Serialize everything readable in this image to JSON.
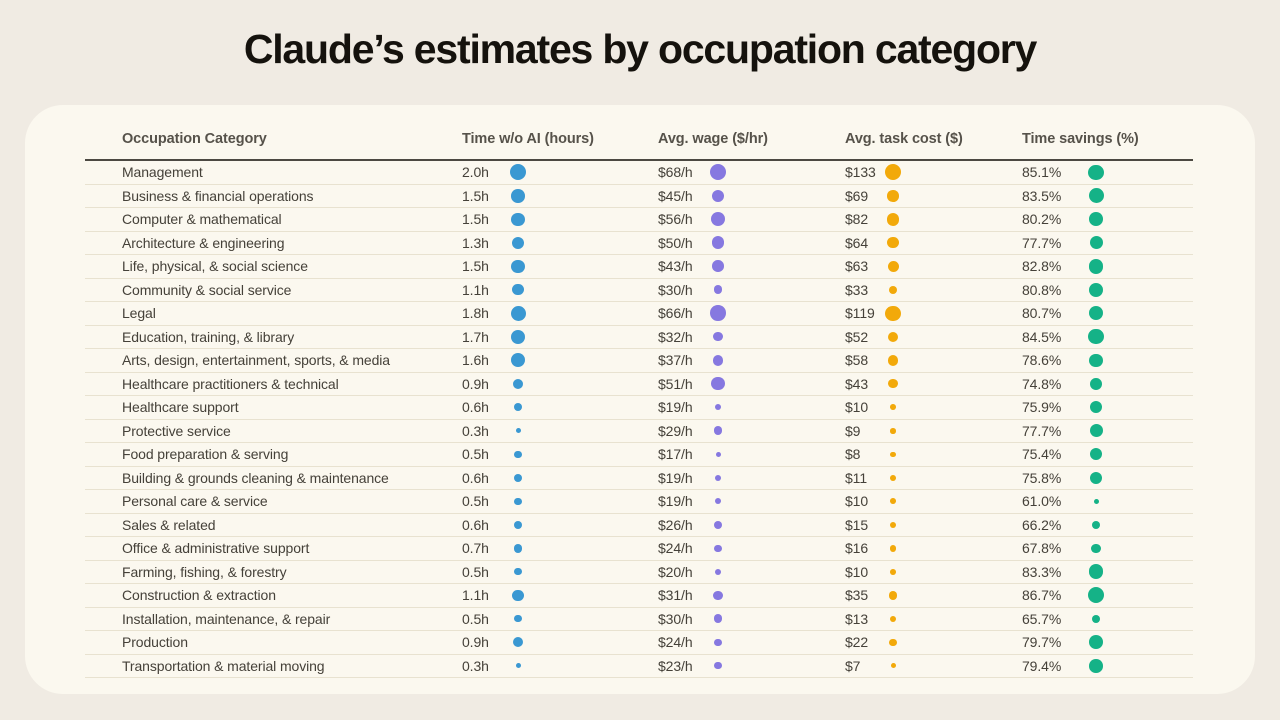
{
  "chart_data": {
    "type": "table",
    "title": "Claude’s estimates by occupation category",
    "legend_note": "dot size scales with value within each column",
    "columns": [
      {
        "key": "category",
        "label": "Occupation Category"
      },
      {
        "key": "time",
        "label": "Time w/o AI (hours)",
        "dot_color": "#3A98D2"
      },
      {
        "key": "wage",
        "label": "Avg. wage ($/hr)",
        "dot_color": "#8678E0"
      },
      {
        "key": "cost",
        "label": "Avg. task cost ($)",
        "dot_color": "#F2A90A"
      },
      {
        "key": "savings",
        "label": "Time savings (%)",
        "dot_color": "#15B287"
      }
    ],
    "rows": [
      {
        "category": "Management",
        "time": "2.0h",
        "time_value": 2.0,
        "wage": "$68/h",
        "wage_value": 68,
        "cost": "$133",
        "cost_value": 133,
        "savings": "85.1%",
        "savings_value": 85.1
      },
      {
        "category": "Business & financial operations",
        "time": "1.5h",
        "time_value": 1.5,
        "wage": "$45/h",
        "wage_value": 45,
        "cost": "$69",
        "cost_value": 69,
        "savings": "83.5%",
        "savings_value": 83.5
      },
      {
        "category": "Computer & mathematical",
        "time": "1.5h",
        "time_value": 1.5,
        "wage": "$56/h",
        "wage_value": 56,
        "cost": "$82",
        "cost_value": 82,
        "savings": "80.2%",
        "savings_value": 80.2
      },
      {
        "category": "Architecture & engineering",
        "time": "1.3h",
        "time_value": 1.3,
        "wage": "$50/h",
        "wage_value": 50,
        "cost": "$64",
        "cost_value": 64,
        "savings": "77.7%",
        "savings_value": 77.7
      },
      {
        "category": "Life, physical, & social science",
        "time": "1.5h",
        "time_value": 1.5,
        "wage": "$43/h",
        "wage_value": 43,
        "cost": "$63",
        "cost_value": 63,
        "savings": "82.8%",
        "savings_value": 82.8
      },
      {
        "category": "Community & social service",
        "time": "1.1h",
        "time_value": 1.1,
        "wage": "$30/h",
        "wage_value": 30,
        "cost": "$33",
        "cost_value": 33,
        "savings": "80.8%",
        "savings_value": 80.8
      },
      {
        "category": "Legal",
        "time": "1.8h",
        "time_value": 1.8,
        "wage": "$66/h",
        "wage_value": 66,
        "cost": "$119",
        "cost_value": 119,
        "savings": "80.7%",
        "savings_value": 80.7
      },
      {
        "category": "Education, training, & library",
        "time": "1.7h",
        "time_value": 1.7,
        "wage": "$32/h",
        "wage_value": 32,
        "cost": "$52",
        "cost_value": 52,
        "savings": "84.5%",
        "savings_value": 84.5
      },
      {
        "category": "Arts, design, entertainment, sports, & media",
        "time": "1.6h",
        "time_value": 1.6,
        "wage": "$37/h",
        "wage_value": 37,
        "cost": "$58",
        "cost_value": 58,
        "savings": "78.6%",
        "savings_value": 78.6
      },
      {
        "category": "Healthcare practitioners & technical",
        "time": "0.9h",
        "time_value": 0.9,
        "wage": "$51/h",
        "wage_value": 51,
        "cost": "$43",
        "cost_value": 43,
        "savings": "74.8%",
        "savings_value": 74.8
      },
      {
        "category": "Healthcare support",
        "time": "0.6h",
        "time_value": 0.6,
        "wage": "$19/h",
        "wage_value": 19,
        "cost": "$10",
        "cost_value": 10,
        "savings": "75.9%",
        "savings_value": 75.9
      },
      {
        "category": "Protective service",
        "time": "0.3h",
        "time_value": 0.3,
        "wage": "$29/h",
        "wage_value": 29,
        "cost": "$9",
        "cost_value": 9,
        "savings": "77.7%",
        "savings_value": 77.7
      },
      {
        "category": "Food preparation & serving",
        "time": "0.5h",
        "time_value": 0.5,
        "wage": "$17/h",
        "wage_value": 17,
        "cost": "$8",
        "cost_value": 8,
        "savings": "75.4%",
        "savings_value": 75.4
      },
      {
        "category": "Building & grounds cleaning & maintenance",
        "time": "0.6h",
        "time_value": 0.6,
        "wage": "$19/h",
        "wage_value": 19,
        "cost": "$11",
        "cost_value": 11,
        "savings": "75.8%",
        "savings_value": 75.8
      },
      {
        "category": "Personal care & service",
        "time": "0.5h",
        "time_value": 0.5,
        "wage": "$19/h",
        "wage_value": 19,
        "cost": "$10",
        "cost_value": 10,
        "savings": "61.0%",
        "savings_value": 61.0
      },
      {
        "category": "Sales & related",
        "time": "0.6h",
        "time_value": 0.6,
        "wage": "$26/h",
        "wage_value": 26,
        "cost": "$15",
        "cost_value": 15,
        "savings": "66.2%",
        "savings_value": 66.2
      },
      {
        "category": "Office & administrative support",
        "time": "0.7h",
        "time_value": 0.7,
        "wage": "$24/h",
        "wage_value": 24,
        "cost": "$16",
        "cost_value": 16,
        "savings": "67.8%",
        "savings_value": 67.8
      },
      {
        "category": "Farming, fishing, & forestry",
        "time": "0.5h",
        "time_value": 0.5,
        "wage": "$20/h",
        "wage_value": 20,
        "cost": "$10",
        "cost_value": 10,
        "savings": "83.3%",
        "savings_value": 83.3
      },
      {
        "category": "Construction & extraction",
        "time": "1.1h",
        "time_value": 1.1,
        "wage": "$31/h",
        "wage_value": 31,
        "cost": "$35",
        "cost_value": 35,
        "savings": "86.7%",
        "savings_value": 86.7
      },
      {
        "category": "Installation, maintenance, & repair",
        "time": "0.5h",
        "time_value": 0.5,
        "wage": "$30/h",
        "wage_value": 30,
        "cost": "$13",
        "cost_value": 13,
        "savings": "65.7%",
        "savings_value": 65.7
      },
      {
        "category": "Production",
        "time": "0.9h",
        "time_value": 0.9,
        "wage": "$24/h",
        "wage_value": 24,
        "cost": "$22",
        "cost_value": 22,
        "savings": "79.7%",
        "savings_value": 79.7
      },
      {
        "category": "Transportation & material moving",
        "time": "0.3h",
        "time_value": 0.3,
        "wage": "$23/h",
        "wage_value": 23,
        "cost": "$7",
        "cost_value": 7,
        "savings": "79.4%",
        "savings_value": 79.4
      }
    ]
  },
  "colors": {
    "page_bg": "#F0EBE3",
    "card_bg": "#FBF8EF",
    "row_separator": "#E8E2D0",
    "header_rule": "#4C4942",
    "title_text": "#15120D",
    "header_text": "#56524A",
    "body_text": "#454139"
  }
}
